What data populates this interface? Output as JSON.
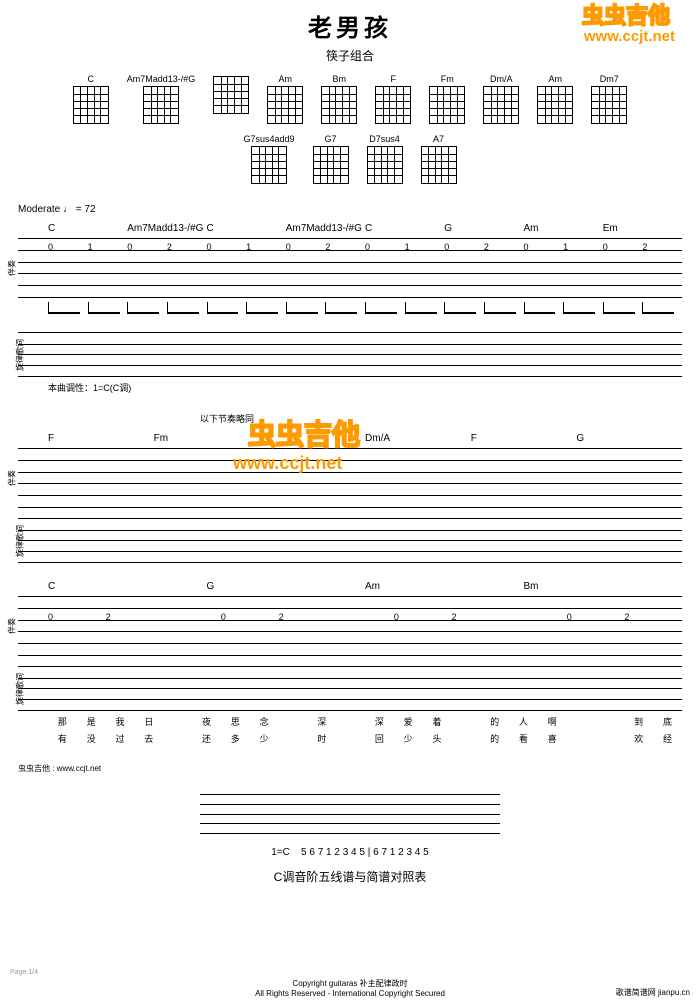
{
  "title": "老男孩",
  "subtitle": "筷子组合",
  "chords_row1": [
    "C",
    "Am7Madd13-/#G",
    "",
    "Am",
    "Bm",
    "F",
    "Fm",
    "Dm/A",
    "Am",
    "Dm7"
  ],
  "chords_row2": [
    "G7sus4add9",
    "G7",
    "D7sus4",
    "A7"
  ],
  "tempo": "Moderate  ♩ = 72",
  "system1": {
    "chords": [
      "C",
      "Am7Madd13-/#G",
      "C",
      "Am7Madd13-/#G",
      "C",
      "G",
      "Am",
      "Em"
    ],
    "tab_nums": [
      "0",
      "1",
      "0",
      "2",
      "0",
      "1",
      "0",
      "2",
      "0",
      "1",
      "0",
      "2",
      "0",
      "1",
      "0",
      "2"
    ],
    "note": "本曲调性：1=C(C调)"
  },
  "system2": {
    "chords": [
      "F",
      "Fm",
      "",
      "Dm/A",
      "F",
      "G"
    ],
    "annotation": "以下节奏略同"
  },
  "system3": {
    "chords": [
      "C",
      "G",
      "Am",
      "Bm"
    ],
    "lyrics1": [
      "那",
      "是",
      "我",
      "日",
      "",
      "夜",
      "思",
      "念",
      "",
      "深",
      "",
      "深",
      "爱",
      "着",
      "",
      "的",
      "人",
      "啊",
      "",
      "",
      "到",
      "底"
    ],
    "lyrics2": [
      "有",
      "没",
      "过",
      "去",
      "",
      "还",
      "多",
      "少",
      "",
      "时",
      "",
      "回",
      "少",
      "头",
      "",
      "的",
      "看",
      "喜",
      "",
      "",
      "欢",
      "经"
    ]
  },
  "credit": "虫虫吉他 : www.ccjt.net",
  "watermark_text": "虫虫吉他",
  "watermark_url": "www.ccjt.net",
  "scale": {
    "key": "1=C",
    "nums": "5  6  7  1  2  3  4  5  |  6  7  1  2  3  4  5",
    "title": "C调音阶五线谱与简谱对照表"
  },
  "footer_copyright": "Copyright guitaras 补主配律政时",
  "footer_rights": "All Rights Reserved - International Copyright Secured",
  "footer_page": "Page 1/4",
  "footer_site": "歌谱简谱网  jianpu.cn"
}
